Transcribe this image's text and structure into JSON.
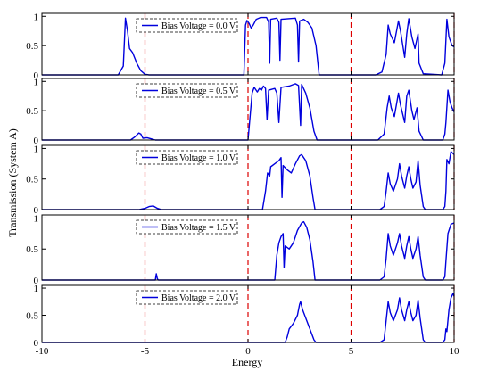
{
  "chart_data": {
    "type": "line",
    "xlabel": "Energy",
    "ylabel": "Transmission (System A)",
    "xlim": [
      -10,
      10
    ],
    "ylim": [
      0,
      1
    ],
    "x_ticks": [
      "-10",
      "-5",
      "0",
      "5",
      "10"
    ],
    "y_ticks": [
      "0",
      "0.5",
      "1"
    ],
    "reference_lines_x": [
      -5,
      0,
      5,
      10
    ],
    "reference_line_color": "#dd0000",
    "series_color": "#0000dd",
    "legend_placement": "top-left",
    "panels": [
      {
        "name": "Bias Voltage = 0.0 V",
        "points": [
          [
            -10,
            0
          ],
          [
            -6.3,
            0
          ],
          [
            -6.05,
            0.15
          ],
          [
            -5.95,
            0.97
          ],
          [
            -5.85,
            0.75
          ],
          [
            -5.75,
            0.45
          ],
          [
            -5.6,
            0.38
          ],
          [
            -5.4,
            0.2
          ],
          [
            -5.2,
            0.07
          ],
          [
            -5.0,
            0.01
          ],
          [
            -4.8,
            0
          ],
          [
            -0.2,
            0
          ],
          [
            -0.12,
            0.85
          ],
          [
            -0.05,
            0.93
          ],
          [
            0.05,
            0.88
          ],
          [
            0.15,
            0.8
          ],
          [
            0.25,
            0.85
          ],
          [
            0.4,
            0.95
          ],
          [
            0.6,
            0.98
          ],
          [
            0.9,
            0.98
          ],
          [
            1.0,
            0.9
          ],
          [
            1.05,
            0.2
          ],
          [
            1.1,
            0.95
          ],
          [
            1.4,
            0.97
          ],
          [
            1.5,
            0.9
          ],
          [
            1.55,
            0.25
          ],
          [
            1.6,
            0.95
          ],
          [
            2.3,
            0.97
          ],
          [
            2.4,
            0.85
          ],
          [
            2.45,
            0.22
          ],
          [
            2.5,
            0.92
          ],
          [
            2.7,
            0.95
          ],
          [
            2.9,
            0.9
          ],
          [
            3.1,
            0.8
          ],
          [
            3.3,
            0.5
          ],
          [
            3.45,
            0
          ],
          [
            6.2,
            0
          ],
          [
            6.5,
            0.05
          ],
          [
            6.7,
            0.35
          ],
          [
            6.8,
            0.85
          ],
          [
            6.9,
            0.7
          ],
          [
            7.1,
            0.55
          ],
          [
            7.3,
            0.92
          ],
          [
            7.4,
            0.75
          ],
          [
            7.6,
            0.3
          ],
          [
            7.7,
            0.7
          ],
          [
            7.8,
            0.96
          ],
          [
            7.95,
            0.65
          ],
          [
            8.1,
            0.45
          ],
          [
            8.25,
            0.7
          ],
          [
            8.3,
            0.2
          ],
          [
            8.5,
            0.02
          ],
          [
            9.4,
            0
          ],
          [
            9.55,
            0.2
          ],
          [
            9.65,
            0.95
          ],
          [
            9.75,
            0.65
          ],
          [
            9.9,
            0.5
          ],
          [
            10,
            0.48
          ]
        ]
      },
      {
        "name": "Bias Voltage = 0.5 V",
        "points": [
          [
            -10,
            0
          ],
          [
            -5.7,
            0
          ],
          [
            -5.5,
            0.05
          ],
          [
            -5.3,
            0.12
          ],
          [
            -5.2,
            0.1
          ],
          [
            -5.1,
            0.03
          ],
          [
            -4.9,
            0.04
          ],
          [
            -4.7,
            0.02
          ],
          [
            -4.5,
            0
          ],
          [
            0,
            0
          ],
          [
            0.1,
            0.4
          ],
          [
            0.2,
            0.8
          ],
          [
            0.3,
            0.9
          ],
          [
            0.45,
            0.82
          ],
          [
            0.55,
            0.88
          ],
          [
            0.65,
            0.85
          ],
          [
            0.75,
            0.92
          ],
          [
            0.85,
            0.88
          ],
          [
            0.92,
            0.35
          ],
          [
            1.0,
            0.85
          ],
          [
            1.3,
            0.88
          ],
          [
            1.4,
            0.8
          ],
          [
            1.5,
            0.3
          ],
          [
            1.6,
            0.9
          ],
          [
            2.0,
            0.92
          ],
          [
            2.3,
            0.96
          ],
          [
            2.45,
            0.93
          ],
          [
            2.55,
            0.25
          ],
          [
            2.6,
            0.95
          ],
          [
            2.8,
            0.8
          ],
          [
            3.0,
            0.55
          ],
          [
            3.2,
            0.15
          ],
          [
            3.35,
            0
          ],
          [
            6.3,
            0
          ],
          [
            6.6,
            0.1
          ],
          [
            6.75,
            0.55
          ],
          [
            6.85,
            0.75
          ],
          [
            6.95,
            0.55
          ],
          [
            7.1,
            0.4
          ],
          [
            7.3,
            0.8
          ],
          [
            7.4,
            0.6
          ],
          [
            7.6,
            0.3
          ],
          [
            7.7,
            0.75
          ],
          [
            7.8,
            0.85
          ],
          [
            7.95,
            0.5
          ],
          [
            8.05,
            0.35
          ],
          [
            8.2,
            0.55
          ],
          [
            8.3,
            0.15
          ],
          [
            8.5,
            0
          ],
          [
            9.45,
            0
          ],
          [
            9.55,
            0.1
          ],
          [
            9.6,
            0.3
          ],
          [
            9.7,
            0.85
          ],
          [
            9.8,
            0.65
          ],
          [
            9.9,
            0.55
          ],
          [
            10,
            0.48
          ]
        ]
      },
      {
        "name": "Bias Voltage = 1.0 V",
        "points": [
          [
            -10,
            0
          ],
          [
            -5.3,
            0
          ],
          [
            -5.0,
            0.02
          ],
          [
            -4.8,
            0.05
          ],
          [
            -4.6,
            0.06
          ],
          [
            -4.4,
            0.02
          ],
          [
            -4.2,
            0
          ],
          [
            0.7,
            0
          ],
          [
            0.85,
            0.3
          ],
          [
            0.95,
            0.6
          ],
          [
            1.05,
            0.55
          ],
          [
            1.1,
            0.7
          ],
          [
            1.3,
            0.75
          ],
          [
            1.5,
            0.8
          ],
          [
            1.6,
            0.85
          ],
          [
            1.65,
            0.2
          ],
          [
            1.7,
            0.72
          ],
          [
            1.9,
            0.65
          ],
          [
            2.1,
            0.6
          ],
          [
            2.3,
            0.75
          ],
          [
            2.5,
            0.88
          ],
          [
            2.6,
            0.9
          ],
          [
            2.8,
            0.8
          ],
          [
            3.0,
            0.55
          ],
          [
            3.15,
            0.2
          ],
          [
            3.25,
            0
          ],
          [
            6.4,
            0
          ],
          [
            6.6,
            0.05
          ],
          [
            6.7,
            0.3
          ],
          [
            6.8,
            0.6
          ],
          [
            6.9,
            0.42
          ],
          [
            7.05,
            0.3
          ],
          [
            7.25,
            0.5
          ],
          [
            7.35,
            0.75
          ],
          [
            7.45,
            0.55
          ],
          [
            7.6,
            0.35
          ],
          [
            7.7,
            0.55
          ],
          [
            7.8,
            0.7
          ],
          [
            7.9,
            0.5
          ],
          [
            8.0,
            0.35
          ],
          [
            8.15,
            0.45
          ],
          [
            8.25,
            0.8
          ],
          [
            8.35,
            0.4
          ],
          [
            8.5,
            0.05
          ],
          [
            8.6,
            0
          ],
          [
            9.45,
            0
          ],
          [
            9.55,
            0.05
          ],
          [
            9.6,
            0.3
          ],
          [
            9.65,
            0.82
          ],
          [
            9.75,
            0.75
          ],
          [
            9.85,
            0.95
          ],
          [
            10,
            0.9
          ]
        ]
      },
      {
        "name": "Bias Voltage = 1.5 V",
        "points": [
          [
            -10,
            0
          ],
          [
            -4.5,
            0
          ],
          [
            -4.45,
            0.1
          ],
          [
            -4.4,
            0.02
          ],
          [
            -4.35,
            0
          ],
          [
            1.3,
            0
          ],
          [
            1.4,
            0.4
          ],
          [
            1.5,
            0.6
          ],
          [
            1.6,
            0.7
          ],
          [
            1.7,
            0.75
          ],
          [
            1.75,
            0.2
          ],
          [
            1.8,
            0.55
          ],
          [
            2.0,
            0.5
          ],
          [
            2.2,
            0.6
          ],
          [
            2.4,
            0.8
          ],
          [
            2.6,
            0.92
          ],
          [
            2.7,
            0.94
          ],
          [
            2.85,
            0.85
          ],
          [
            3.0,
            0.65
          ],
          [
            3.15,
            0.3
          ],
          [
            3.25,
            0
          ],
          [
            6.4,
            0
          ],
          [
            6.6,
            0.05
          ],
          [
            6.7,
            0.35
          ],
          [
            6.8,
            0.75
          ],
          [
            6.9,
            0.55
          ],
          [
            7.05,
            0.4
          ],
          [
            7.25,
            0.6
          ],
          [
            7.35,
            0.75
          ],
          [
            7.45,
            0.55
          ],
          [
            7.6,
            0.35
          ],
          [
            7.7,
            0.55
          ],
          [
            7.8,
            0.7
          ],
          [
            7.9,
            0.5
          ],
          [
            8.0,
            0.35
          ],
          [
            8.15,
            0.5
          ],
          [
            8.25,
            0.7
          ],
          [
            8.35,
            0.4
          ],
          [
            8.5,
            0.05
          ],
          [
            8.6,
            0
          ],
          [
            9.45,
            0
          ],
          [
            9.55,
            0.05
          ],
          [
            9.6,
            0.3
          ],
          [
            9.7,
            0.75
          ],
          [
            9.85,
            0.9
          ],
          [
            10,
            0.92
          ]
        ]
      },
      {
        "name": "Bias Voltage = 2.0 V",
        "points": [
          [
            -10,
            0
          ],
          [
            1.8,
            0
          ],
          [
            1.9,
            0.1
          ],
          [
            2.0,
            0.25
          ],
          [
            2.2,
            0.35
          ],
          [
            2.4,
            0.5
          ],
          [
            2.5,
            0.7
          ],
          [
            2.55,
            0.75
          ],
          [
            2.65,
            0.6
          ],
          [
            2.8,
            0.45
          ],
          [
            3.0,
            0.25
          ],
          [
            3.2,
            0.05
          ],
          [
            3.3,
            0
          ],
          [
            6.4,
            0
          ],
          [
            6.6,
            0.05
          ],
          [
            6.7,
            0.4
          ],
          [
            6.8,
            0.75
          ],
          [
            6.9,
            0.55
          ],
          [
            7.05,
            0.4
          ],
          [
            7.25,
            0.6
          ],
          [
            7.35,
            0.82
          ],
          [
            7.45,
            0.6
          ],
          [
            7.6,
            0.4
          ],
          [
            7.7,
            0.6
          ],
          [
            7.8,
            0.75
          ],
          [
            7.9,
            0.55
          ],
          [
            8.0,
            0.4
          ],
          [
            8.15,
            0.5
          ],
          [
            8.25,
            0.78
          ],
          [
            8.35,
            0.45
          ],
          [
            8.5,
            0.05
          ],
          [
            8.6,
            0
          ],
          [
            9.45,
            0
          ],
          [
            9.55,
            0.05
          ],
          [
            9.6,
            0.25
          ],
          [
            9.65,
            0.2
          ],
          [
            9.75,
            0.6
          ],
          [
            9.85,
            0.82
          ],
          [
            9.95,
            0.9
          ],
          [
            10,
            0.85
          ]
        ]
      }
    ]
  }
}
